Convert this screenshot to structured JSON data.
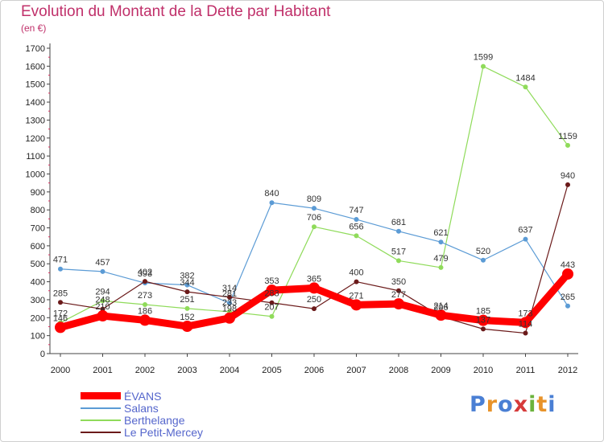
{
  "chart_data": {
    "type": "line",
    "title": "Evolution du Montant de la Dette par Habitant",
    "subtitle": "(en €)",
    "categories": [
      "2000",
      "2001",
      "2002",
      "2003",
      "2004",
      "2005",
      "2006",
      "2007",
      "2008",
      "2009",
      "2010",
      "2011",
      "2012"
    ],
    "ylim": [
      0,
      1700
    ],
    "y_ticks": [
      0,
      100,
      200,
      300,
      400,
      500,
      600,
      700,
      800,
      900,
      1000,
      1100,
      1200,
      1300,
      1400,
      1500,
      1600,
      1700
    ],
    "grid": false,
    "legend_position": "bottom-left",
    "series": [
      {
        "name": "ÉVANS",
        "color": "#ff0000",
        "values": [
          146,
          210,
          186,
          152,
          198,
          353,
          365,
          271,
          277,
          214,
          185,
          173,
          443
        ],
        "labels": [
          "146",
          "210",
          "186",
          "152",
          "198",
          "353",
          "365",
          "271",
          "277",
          "214",
          "185",
          "173",
          "443"
        ]
      },
      {
        "name": "Salans",
        "color": "#5b9bd5",
        "values": [
          471,
          457,
          393,
          382,
          281,
          840,
          809,
          747,
          681,
          621,
          520,
          637,
          265
        ],
        "labels": [
          "471",
          "457",
          "393",
          "382",
          "281",
          "840",
          "809",
          "747",
          "681",
          "621",
          "520",
          "637",
          "265"
        ]
      },
      {
        "name": "Berthelange",
        "color": "#8fdb5a",
        "values": [
          172,
          294,
          273,
          251,
          233,
          207,
          706,
          656,
          517,
          479,
          1599,
          1484,
          1159
        ],
        "labels": [
          "172",
          "294",
          "273",
          "251",
          "233",
          "207",
          "706",
          "656",
          "517",
          "479",
          "1599",
          "1484",
          "1159"
        ]
      },
      {
        "name": "Le Petit-Mercey",
        "color": "#6b1a1a",
        "values": [
          285,
          248,
          402,
          344,
          314,
          283,
          250,
          400,
          350,
          206,
          137,
          114,
          940
        ],
        "labels": [
          "285",
          "248",
          "402",
          "344",
          "314",
          "283",
          "250",
          "400",
          "350",
          "206",
          "137",
          "114",
          "940"
        ]
      }
    ]
  },
  "logo": {
    "letters": [
      "P",
      "r",
      "o",
      "x",
      "i",
      "t",
      "i"
    ],
    "colors": [
      "#4a7fd4",
      "#e8932a",
      "#4a7fd4",
      "#d63a3a",
      "#6bb33c",
      "#e8932a",
      "#4a7fd4"
    ]
  }
}
